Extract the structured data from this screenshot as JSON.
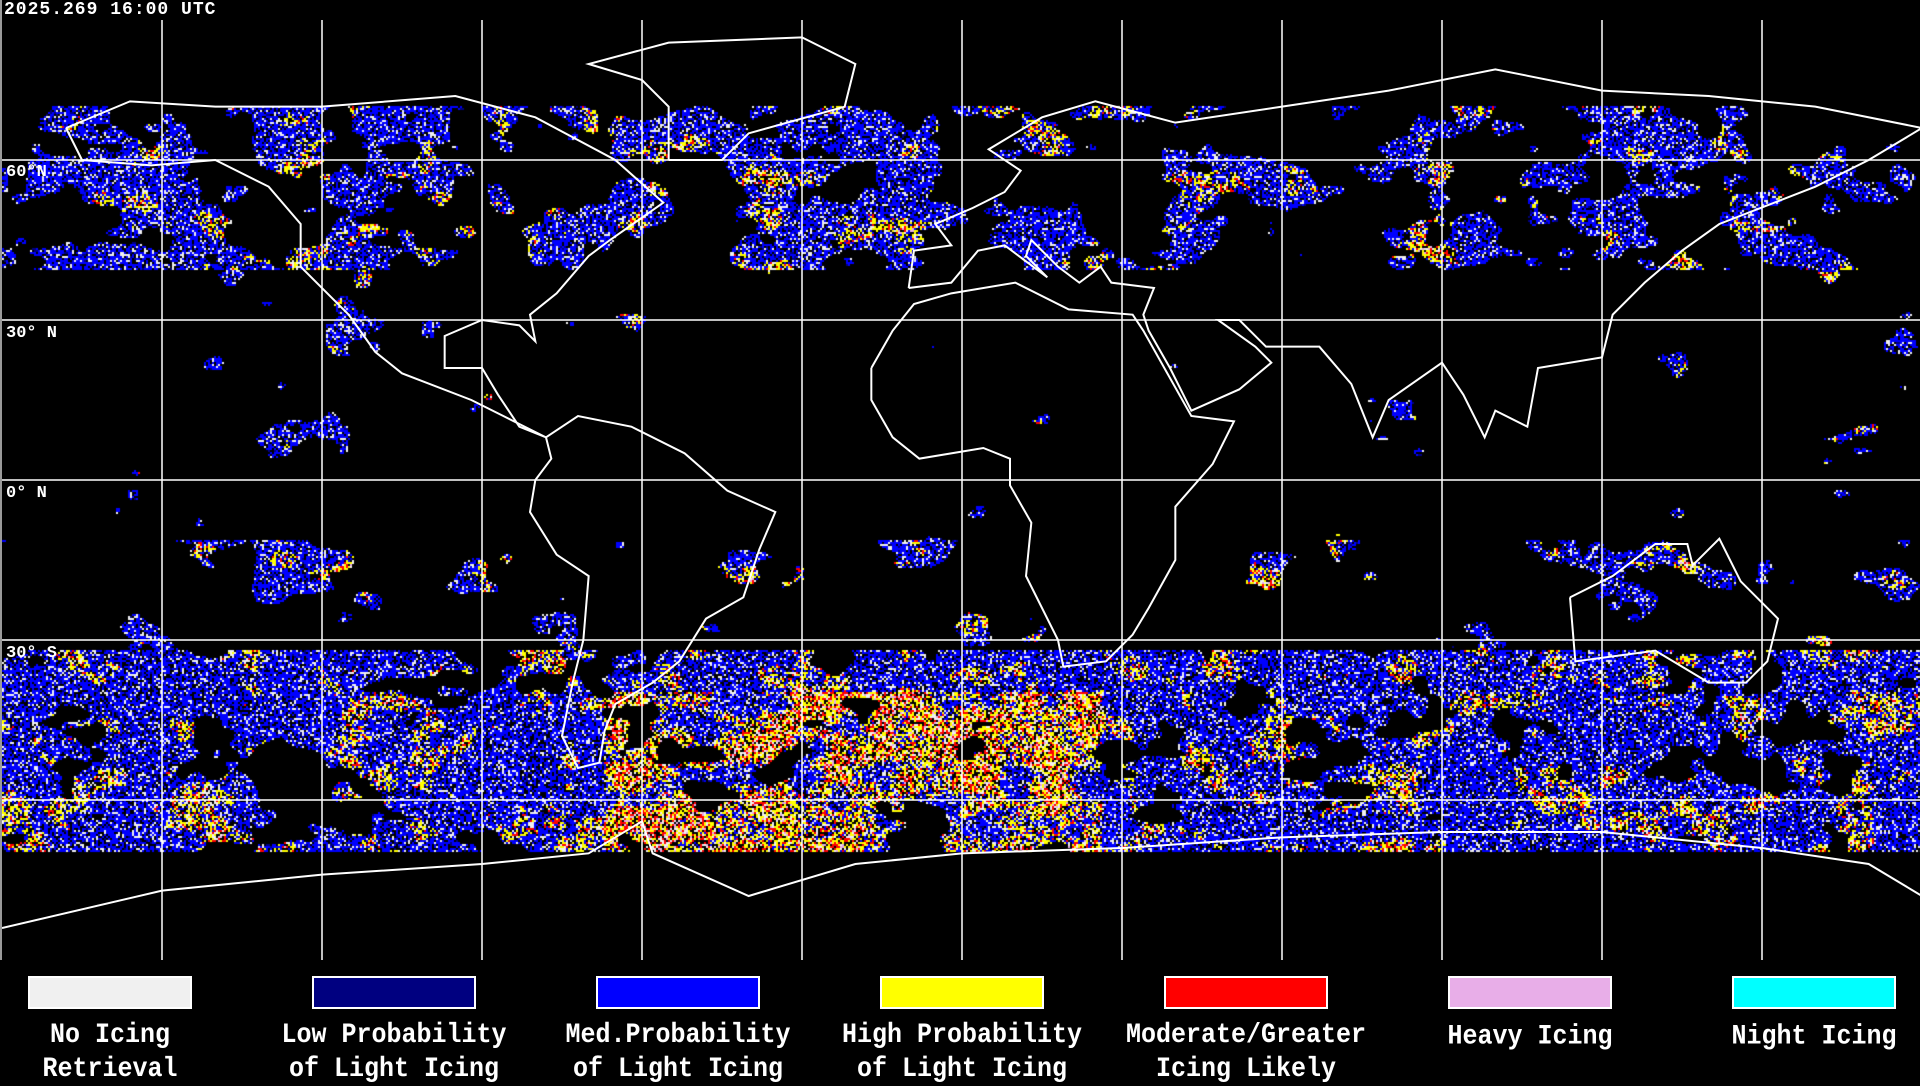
{
  "header": {
    "timestamp": "2025.269 16:00 UTC"
  },
  "map": {
    "lat_labels": [
      "60°N",
      "30° N",
      "0° N",
      "30° S"
    ],
    "projection": "equirectangular",
    "grid_spacing_degrees": 30,
    "grid": true,
    "coastlines_color": "#ffffff",
    "background_color": "#000000"
  },
  "legend": {
    "items": [
      {
        "line1": "No Icing",
        "line2": "Retrieval",
        "color": "#f0f0f0"
      },
      {
        "line1": "Low Probability",
        "line2": "of Light Icing",
        "color": "#000080"
      },
      {
        "line1": "Med.Probability",
        "line2": "of Light Icing",
        "color": "#0000ff"
      },
      {
        "line1": "High Probability",
        "line2": "of Light Icing",
        "color": "#ffff00"
      },
      {
        "line1": "Moderate/Greater",
        "line2": "Icing Likely",
        "color": "#ff0000"
      },
      {
        "line1": "Heavy Icing",
        "line2": "",
        "color": "#e8aee8"
      },
      {
        "line1": "Night Icing",
        "line2": "",
        "color": "#00ffff"
      }
    ]
  }
}
